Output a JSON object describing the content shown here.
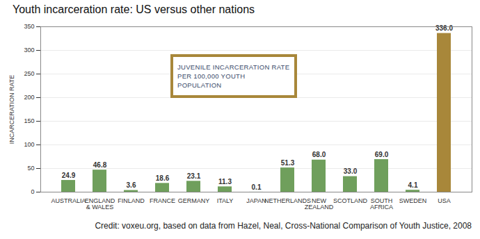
{
  "chart_data": {
    "type": "bar",
    "title": "Youth incarceration rate: US versus other nations",
    "annotation": "JUVENILE INCARCERATION RATE\nPER 100,000 YOUTH POPULATION",
    "caption": "Credit: voxeu.org, based on data from Hazel, Neal, Cross-National Comparison of Youth Justice, 2008",
    "y_label": "INCARCERATION RATE",
    "categories": [
      "AUSTRALIA",
      "ENGLAND\n& WALES",
      "FINLAND",
      "FRANCE",
      "GERMANY",
      "ITALY",
      "JAPAN",
      "NETHERLANDS",
      "NEW\nZEALAND",
      "SCOTLAND",
      "SOUTH\nAFRICA",
      "SWEDEN",
      "USA"
    ],
    "values": [
      24.9,
      46.8,
      3.6,
      18.6,
      23.1,
      11.3,
      0.1,
      51.3,
      68.0,
      33.0,
      69.0,
      4.1,
      336.0
    ],
    "value_labels": [
      "24.9",
      "46.8",
      "3.6",
      "18.6",
      "23.1",
      "11.3",
      "0.1",
      "51.3",
      "68.0",
      "33.0",
      "69.0",
      "4.1",
      "336.0"
    ],
    "data_labels": true,
    "colors": [
      "#6f9f5c",
      "#6f9f5c",
      "#6f9f5c",
      "#6f9f5c",
      "#6f9f5c",
      "#6f9f5c",
      "#6f9f5c",
      "#6f9f5c",
      "#6f9f5c",
      "#6f9f5c",
      "#6f9f5c",
      "#6f9f5c",
      "#a8873a"
    ],
    "ylim": [
      0,
      350
    ],
    "yticks": [
      0,
      50,
      100,
      150,
      200,
      250,
      300,
      350
    ],
    "grid": true
  }
}
